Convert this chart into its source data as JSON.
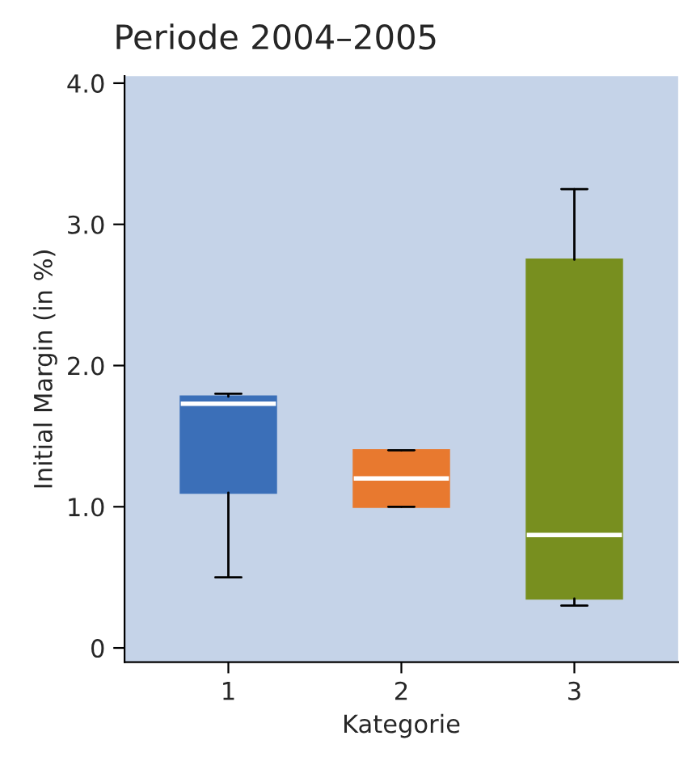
{
  "chart_data": {
    "type": "box",
    "title": "Periode 2004–2005",
    "xlabel": "Kategorie",
    "ylabel": "Initial Margin (in %)",
    "categories": [
      "1",
      "2",
      "3"
    ],
    "colors": [
      "#3b6fb8",
      "#e8792f",
      "#788f1f"
    ],
    "boxes": [
      {
        "low": 0.5,
        "q1": 1.1,
        "median": 1.73,
        "q3": 1.78,
        "high": 1.8
      },
      {
        "low": 1.0,
        "q1": 1.0,
        "median": 1.2,
        "q3": 1.4,
        "high": 1.4
      },
      {
        "low": 0.3,
        "q1": 0.35,
        "median": 0.8,
        "q3": 2.75,
        "high": 3.25
      }
    ],
    "ylim": [
      -0.1,
      4.05
    ],
    "yticks": [
      {
        "value": 0,
        "label": "0"
      },
      {
        "value": 1,
        "label": "1.0"
      },
      {
        "value": 2,
        "label": "2.0"
      },
      {
        "value": 3,
        "label": "3.0"
      },
      {
        "value": 4,
        "label": "4.0"
      }
    ],
    "grid": false,
    "legend": false
  }
}
